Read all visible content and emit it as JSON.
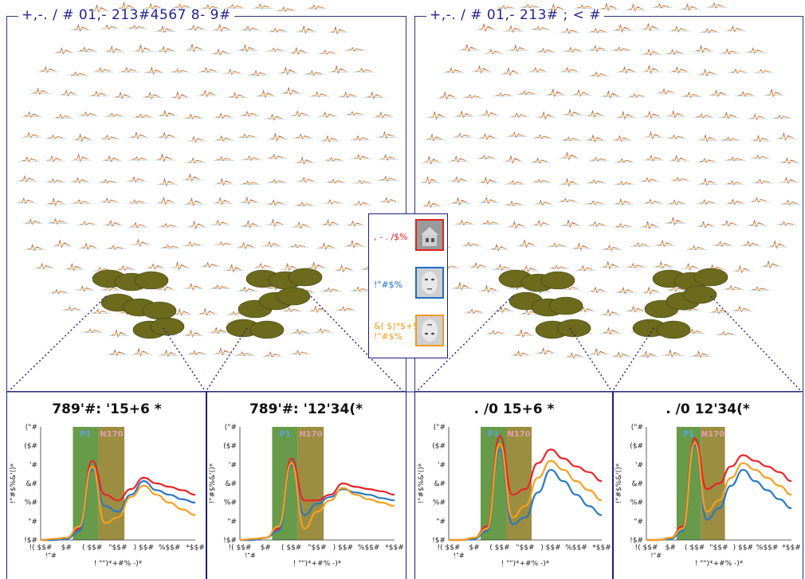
{
  "left_region": {
    "title": "+,-. / # 01,- 213#4567 8- 9#"
  },
  "right_region": {
    "title": "+,-. / # 01,- 213# ; < #"
  },
  "legend": {
    "items": [
      {
        "label": "‚ - . /$%",
        "color": "#e02020",
        "thumb": "house"
      },
      {
        "label": "!\"#$%",
        "color": "#1f6fc0",
        "thumb": "face"
      },
      {
        "label": "&( $)*$+9\n!\"#$%",
        "color": "#f39a1e",
        "thumb": "inverted-face"
      }
    ]
  },
  "panels": [
    {
      "title": "789'#: '15+6 *"
    },
    {
      "title": "789'#: '12'34(*"
    },
    {
      "title": ". /0 15+6 *"
    },
    {
      "title": ". /0 12'34(*"
    }
  ],
  "erp_axes": {
    "ytick_labels": [
      "(\"#",
      "($#",
      "'#",
      "&#",
      "%#",
      "\"#",
      "!$#"
    ],
    "xtick_labels": [
      "!( $$#",
      "$#",
      "( $$#",
      "\"$$#",
      ") $$#",
      "%$$#",
      "*$$#"
    ],
    "xtick_sub": "!\"#",
    "ylabel": "!\"#$%&'()*",
    "xlabel": "! \"\")*+#% -)*"
  },
  "windows": {
    "p1_label": "P1",
    "n170_label": "N170"
  },
  "colors": {
    "red": "#e8242a",
    "blue": "#2a78c2",
    "orange": "#f5a020",
    "p1_fill": "#4c8a2a",
    "n170_fill": "#8a7a1e",
    "ellipse": "#6b6a1d"
  },
  "chart_data": [
    {
      "type": "line",
      "x": [
        -100,
        -50,
        0,
        50,
        100,
        150,
        200,
        250,
        300,
        350,
        400,
        450,
        500
      ],
      "series": [
        {
          "color": "red",
          "values": [
            0,
            0,
            1,
            10,
            70,
            40,
            35,
            45,
            55,
            50,
            47,
            44,
            40
          ]
        },
        {
          "color": "blue",
          "values": [
            0,
            0,
            1,
            8,
            62,
            30,
            25,
            40,
            52,
            44,
            40,
            36,
            33
          ]
        },
        {
          "color": "orange",
          "values": [
            0,
            1,
            2,
            12,
            65,
            15,
            20,
            38,
            48,
            40,
            33,
            27,
            22
          ]
        }
      ]
    },
    {
      "type": "line",
      "x": [
        -100,
        -50,
        0,
        50,
        100,
        150,
        200,
        250,
        300,
        350,
        400,
        450,
        500
      ],
      "series": [
        {
          "color": "red",
          "values": [
            0,
            0,
            2,
            10,
            72,
            35,
            35,
            40,
            50,
            47,
            45,
            43,
            40
          ]
        },
        {
          "color": "blue",
          "values": [
            0,
            0,
            2,
            8,
            66,
            22,
            32,
            38,
            45,
            42,
            40,
            37,
            35
          ]
        },
        {
          "color": "orange",
          "values": [
            0,
            1,
            2,
            12,
            68,
            10,
            25,
            35,
            46,
            40,
            36,
            33,
            30
          ]
        }
      ]
    },
    {
      "type": "line",
      "x": [
        -100,
        -50,
        0,
        50,
        100,
        150,
        200,
        250,
        300,
        350,
        400,
        450,
        500
      ],
      "series": [
        {
          "color": "red",
          "values": [
            0,
            0,
            2,
            12,
            92,
            40,
            45,
            68,
            80,
            72,
            65,
            60,
            52
          ]
        },
        {
          "color": "blue",
          "values": [
            0,
            0,
            1,
            8,
            80,
            14,
            20,
            42,
            62,
            52,
            40,
            30,
            22
          ]
        },
        {
          "color": "orange",
          "values": [
            0,
            0,
            2,
            10,
            85,
            20,
            30,
            55,
            70,
            62,
            52,
            44,
            35
          ]
        }
      ]
    },
    {
      "type": "line",
      "x": [
        -100,
        -50,
        0,
        50,
        100,
        150,
        200,
        250,
        300,
        350,
        400,
        450,
        500
      ],
      "series": [
        {
          "color": "red",
          "values": [
            0,
            0,
            2,
            12,
            90,
            45,
            50,
            65,
            75,
            70,
            65,
            60,
            52
          ]
        },
        {
          "color": "blue",
          "values": [
            0,
            0,
            1,
            8,
            84,
            18,
            28,
            48,
            62,
            52,
            44,
            36,
            28
          ]
        },
        {
          "color": "orange",
          "values": [
            0,
            0,
            2,
            10,
            86,
            25,
            35,
            55,
            68,
            62,
            55,
            48,
            40
          ]
        }
      ]
    }
  ]
}
